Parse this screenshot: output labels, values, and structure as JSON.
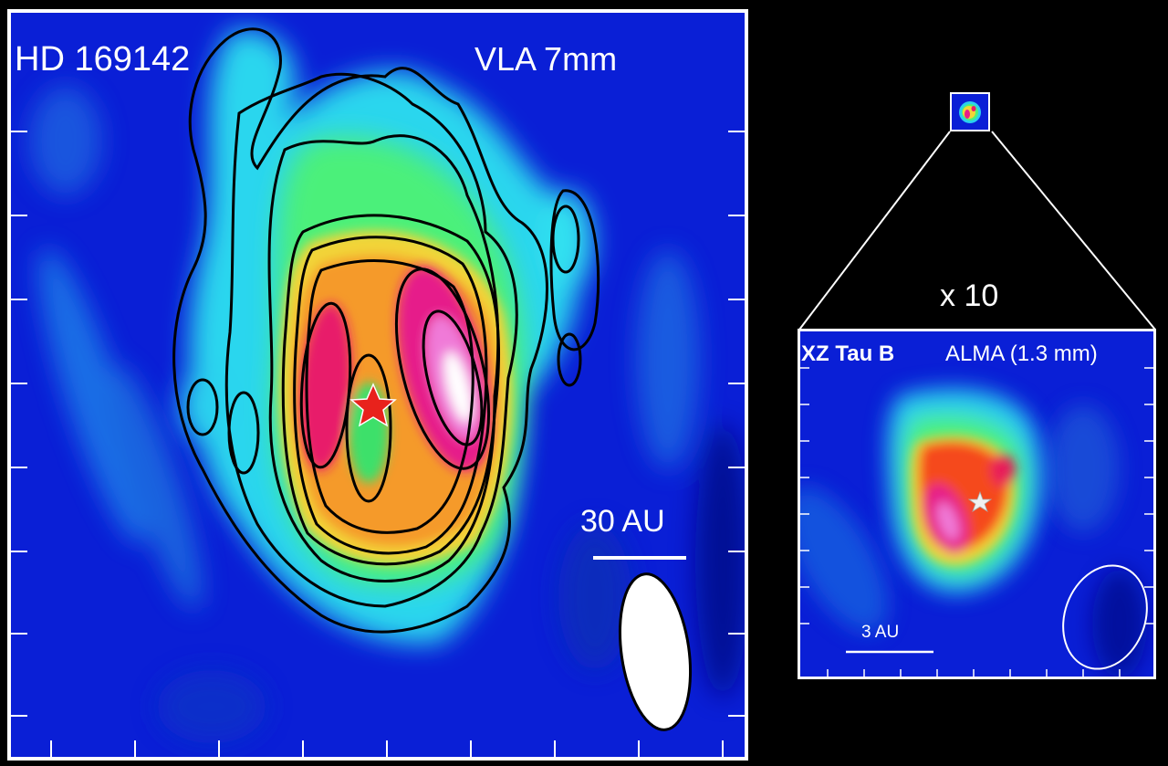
{
  "left_panel": {
    "source": "HD 169142",
    "band": "VLA 7mm",
    "scale_bar": "30 AU"
  },
  "right_panel": {
    "source": "XZ Tau B",
    "band": "ALMA (1.3 mm)",
    "scale_bar": "3 AU"
  },
  "zoom": {
    "label": "x 10"
  },
  "colors": {
    "background": "#000000",
    "frame": "#ffffff",
    "low_emission": "#0a1fd6",
    "contour": "#000000",
    "star_marker_left": "#e8221c",
    "star_marker_right": "#f0f0f0",
    "beam": "#ffffff"
  },
  "icons": {
    "left_star": "star-icon",
    "right_star": "star-icon"
  }
}
